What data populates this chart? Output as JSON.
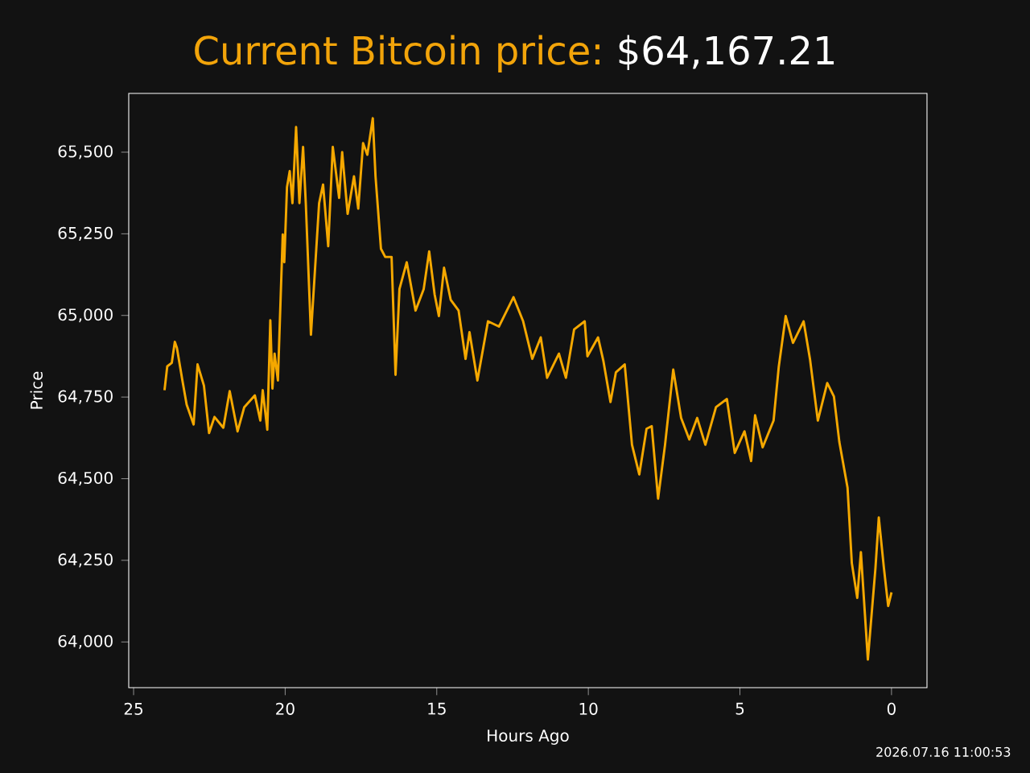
{
  "chart_data": {
    "type": "line",
    "title": "Current Bitcoin price:",
    "subtitle": "$64,167.21",
    "xlabel": "Hours Ago",
    "ylabel": "Price",
    "annotations": [
      "2026.07.16 11:00:53"
    ],
    "xlim": [
      25.16,
      -1.17
    ],
    "xticks": [
      25,
      20,
      15,
      10,
      5,
      0
    ],
    "ylim": [
      63860,
      65680
    ],
    "yticks": [
      {
        "value": 64000,
        "label": "64,000"
      },
      {
        "value": 64250,
        "label": "64,250"
      },
      {
        "value": 64500,
        "label": "64,500"
      },
      {
        "value": 64750,
        "label": "64,750"
      },
      {
        "value": 65000,
        "label": "65,000"
      },
      {
        "value": 65250,
        "label": "65,250"
      },
      {
        "value": 65500,
        "label": "65,500"
      }
    ],
    "series": [
      {
        "color": "#f5a800",
        "x": [
          23.98,
          23.89,
          23.74,
          23.64,
          23.57,
          23.39,
          23.25,
          23.02,
          22.89,
          22.68,
          22.51,
          22.33,
          22.04,
          21.83,
          21.57,
          21.35,
          21.0,
          20.82,
          20.74,
          20.59,
          20.49,
          20.42,
          20.35,
          20.24,
          20.08,
          20.03,
          19.94,
          19.85,
          19.76,
          19.64,
          19.53,
          19.41,
          19.32,
          19.15,
          18.88,
          18.75,
          18.58,
          18.43,
          18.22,
          18.12,
          17.94,
          17.73,
          17.59,
          17.43,
          17.29,
          17.11,
          17.02,
          16.84,
          16.7,
          16.49,
          16.36,
          16.23,
          15.99,
          15.7,
          15.43,
          15.25,
          15.07,
          14.93,
          14.76,
          14.54,
          14.28,
          14.05,
          13.92,
          13.66,
          13.31,
          12.95,
          12.47,
          12.15,
          11.85,
          11.57,
          11.36,
          10.97,
          10.74,
          10.47,
          10.12,
          10.03,
          9.68,
          9.5,
          9.27,
          9.09,
          8.8,
          8.56,
          8.32,
          8.08,
          7.91,
          7.7,
          7.47,
          7.2,
          6.94,
          6.67,
          6.41,
          6.14,
          5.79,
          5.43,
          5.17,
          4.85,
          4.63,
          4.5,
          4.25,
          3.89,
          3.72,
          3.49,
          3.25,
          2.9,
          2.69,
          2.43,
          2.12,
          1.9,
          1.72,
          1.45,
          1.31,
          1.13,
          1.01,
          0.78,
          0.53,
          0.42,
          0.25,
          0.11,
          0.0
        ],
        "values": [
          64771,
          64844,
          64855,
          64919,
          64900,
          64801,
          64727,
          64666,
          64850,
          64785,
          64640,
          64689,
          64656,
          64768,
          64645,
          64719,
          64755,
          64678,
          64771,
          64650,
          64985,
          64776,
          64883,
          64801,
          65248,
          65163,
          65393,
          65442,
          65344,
          65577,
          65344,
          65516,
          65344,
          64941,
          65344,
          65401,
          65212,
          65516,
          65360,
          65500,
          65311,
          65426,
          65327,
          65528,
          65492,
          65604,
          65426,
          65204,
          65179,
          65179,
          64818,
          65081,
          65163,
          65015,
          65081,
          65196,
          65064,
          64998,
          65146,
          65048,
          65015,
          64867,
          64949,
          64801,
          64982,
          64966,
          65056,
          64982,
          64867,
          64933,
          64809,
          64883,
          64809,
          64957,
          64982,
          64875,
          64933,
          64859,
          64735,
          64826,
          64850,
          64604,
          64513,
          64653,
          64661,
          64439,
          64604,
          64834,
          64686,
          64620,
          64686,
          64604,
          64719,
          64744,
          64579,
          64645,
          64554,
          64694,
          64596,
          64678,
          64842,
          64998,
          64916,
          64982,
          64867,
          64678,
          64793,
          64752,
          64612,
          64472,
          64242,
          64135,
          64275,
          63946,
          64226,
          64381,
          64226,
          64110,
          64152
        ]
      }
    ]
  }
}
